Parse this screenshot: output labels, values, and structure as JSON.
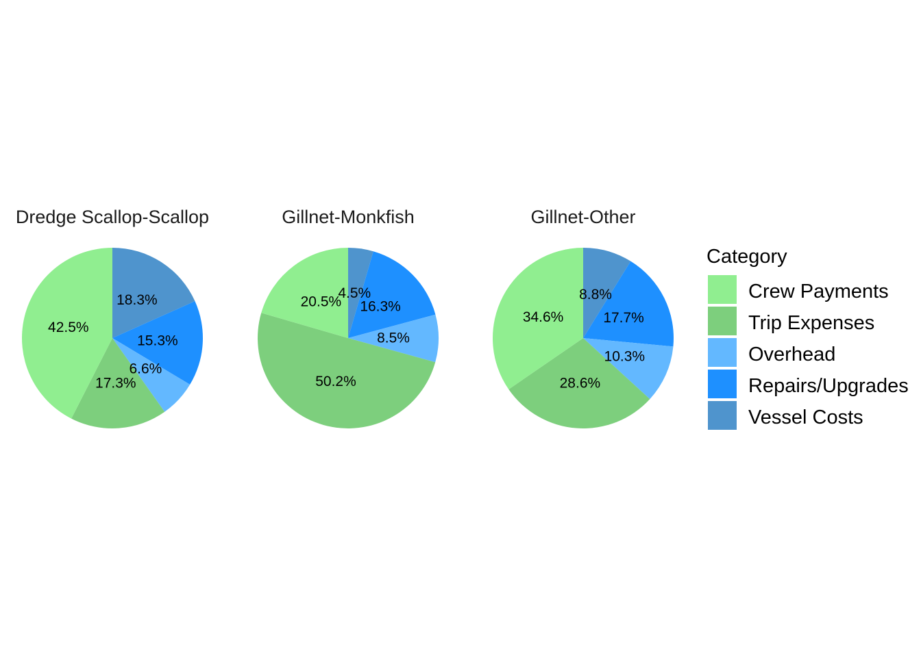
{
  "chart_data": {
    "type": "pie",
    "legend": {
      "title": "Category",
      "position": "right",
      "entries": [
        {
          "name": "Crew Payments",
          "color": "#90EE90"
        },
        {
          "name": "Trip Expenses",
          "color": "#7DCF7D"
        },
        {
          "name": "Overhead",
          "color": "#63B8FF"
        },
        {
          "name": "Repairs/Upgrades",
          "color": "#1E90FF"
        },
        {
          "name": "Vessel Costs",
          "color": "#4F94CD"
        }
      ]
    },
    "panels": [
      {
        "title": "Dredge  Scallop-Scallop",
        "slices": [
          {
            "category": "Vessel Costs",
            "value": 18.3,
            "label": "18.3%"
          },
          {
            "category": "Repairs/Upgrades",
            "value": 15.3,
            "label": "15.3%"
          },
          {
            "category": "Overhead",
            "value": 6.6,
            "label": "6.6%"
          },
          {
            "category": "Trip Expenses",
            "value": 17.3,
            "label": "17.3%"
          },
          {
            "category": "Crew Payments",
            "value": 42.5,
            "label": "42.5%"
          }
        ]
      },
      {
        "title": "Gillnet-Monkfish",
        "slices": [
          {
            "category": "Vessel Costs",
            "value": 4.5,
            "label": "4.5%"
          },
          {
            "category": "Repairs/Upgrades",
            "value": 16.3,
            "label": "16.3%"
          },
          {
            "category": "Overhead",
            "value": 8.5,
            "label": "8.5%"
          },
          {
            "category": "Trip Expenses",
            "value": 50.2,
            "label": "50.2%"
          },
          {
            "category": "Crew Payments",
            "value": 20.5,
            "label": "20.5%"
          }
        ]
      },
      {
        "title": "Gillnet-Other",
        "slices": [
          {
            "category": "Vessel Costs",
            "value": 8.8,
            "label": "8.8%"
          },
          {
            "category": "Repairs/Upgrades",
            "value": 17.7,
            "label": "17.7%"
          },
          {
            "category": "Overhead",
            "value": 10.3,
            "label": "10.3%"
          },
          {
            "category": "Trip Expenses",
            "value": 28.6,
            "label": "28.6%"
          },
          {
            "category": "Crew Payments",
            "value": 34.6,
            "label": "34.6%"
          }
        ]
      }
    ]
  }
}
